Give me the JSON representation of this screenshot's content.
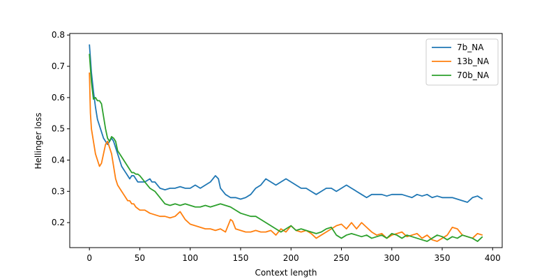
{
  "chart_data": {
    "type": "line",
    "title": "",
    "xlabel": "Context length",
    "ylabel": "Hellinger loss",
    "xlim": [
      -19.5,
      409.5
    ],
    "ylim": [
      0.12,
      0.805
    ],
    "xticks": [
      0,
      50,
      100,
      150,
      200,
      250,
      300,
      350,
      400
    ],
    "yticks": [
      0.2,
      0.3,
      0.4,
      0.5,
      0.6,
      0.7,
      0.8
    ],
    "xtick_labels": [
      "0",
      "50",
      "100",
      "150",
      "200",
      "250",
      "300",
      "350",
      "400"
    ],
    "ytick_labels": [
      "0.2",
      "0.3",
      "0.4",
      "0.5",
      "0.6",
      "0.7",
      "0.8"
    ],
    "grid": false,
    "legend_position": "top-right",
    "series": [
      {
        "name": "7b_NA",
        "color": "#1f77b4",
        "x": [
          0,
          2,
          4,
          6,
          8,
          10,
          12,
          14,
          16,
          18,
          20,
          22,
          24,
          26,
          28,
          30,
          32,
          34,
          36,
          38,
          40,
          42,
          44,
          46,
          48,
          50,
          55,
          60,
          62,
          65,
          70,
          75,
          80,
          85,
          90,
          95,
          100,
          105,
          110,
          115,
          120,
          125,
          128,
          130,
          135,
          140,
          145,
          150,
          155,
          160,
          165,
          170,
          175,
          180,
          185,
          190,
          195,
          200,
          205,
          210,
          215,
          220,
          225,
          230,
          235,
          240,
          245,
          250,
          255,
          260,
          265,
          270,
          275,
          280,
          285,
          290,
          295,
          300,
          305,
          310,
          315,
          320,
          325,
          330,
          335,
          340,
          345,
          350,
          355,
          360,
          365,
          370,
          375,
          380,
          385,
          390
        ],
        "y": [
          0.77,
          0.68,
          0.62,
          0.57,
          0.53,
          0.51,
          0.49,
          0.47,
          0.46,
          0.45,
          0.46,
          0.47,
          0.46,
          0.44,
          0.42,
          0.4,
          0.38,
          0.37,
          0.36,
          0.35,
          0.34,
          0.35,
          0.35,
          0.34,
          0.33,
          0.33,
          0.33,
          0.34,
          0.33,
          0.33,
          0.31,
          0.305,
          0.31,
          0.31,
          0.315,
          0.31,
          0.31,
          0.32,
          0.31,
          0.32,
          0.33,
          0.35,
          0.34,
          0.31,
          0.29,
          0.28,
          0.28,
          0.275,
          0.28,
          0.29,
          0.31,
          0.32,
          0.34,
          0.33,
          0.32,
          0.33,
          0.34,
          0.33,
          0.32,
          0.31,
          0.31,
          0.3,
          0.29,
          0.3,
          0.31,
          0.31,
          0.3,
          0.31,
          0.32,
          0.31,
          0.3,
          0.29,
          0.28,
          0.29,
          0.29,
          0.29,
          0.285,
          0.29,
          0.29,
          0.29,
          0.285,
          0.28,
          0.29,
          0.285,
          0.29,
          0.28,
          0.285,
          0.28,
          0.28,
          0.28,
          0.275,
          0.27,
          0.265,
          0.28,
          0.285,
          0.275
        ]
      },
      {
        "name": "13b_NA",
        "color": "#ff7f0e",
        "x": [
          0,
          1,
          2,
          4,
          6,
          8,
          10,
          12,
          14,
          16,
          18,
          20,
          22,
          24,
          26,
          28,
          30,
          32,
          34,
          36,
          38,
          40,
          42,
          44,
          46,
          48,
          50,
          55,
          60,
          65,
          70,
          75,
          80,
          85,
          90,
          95,
          100,
          105,
          110,
          115,
          120,
          125,
          130,
          135,
          140,
          142,
          145,
          150,
          155,
          160,
          165,
          170,
          175,
          180,
          185,
          190,
          195,
          200,
          205,
          210,
          215,
          220,
          225,
          230,
          235,
          240,
          245,
          250,
          255,
          260,
          265,
          270,
          275,
          280,
          285,
          290,
          295,
          300,
          305,
          310,
          315,
          320,
          325,
          330,
          335,
          340,
          345,
          350,
          355,
          360,
          365,
          370,
          375,
          380,
          385,
          390
        ],
        "y": [
          0.68,
          0.55,
          0.5,
          0.46,
          0.42,
          0.4,
          0.38,
          0.39,
          0.42,
          0.45,
          0.46,
          0.44,
          0.42,
          0.38,
          0.34,
          0.32,
          0.31,
          0.3,
          0.29,
          0.28,
          0.27,
          0.27,
          0.26,
          0.26,
          0.25,
          0.245,
          0.24,
          0.24,
          0.23,
          0.225,
          0.22,
          0.22,
          0.215,
          0.22,
          0.235,
          0.21,
          0.195,
          0.19,
          0.185,
          0.18,
          0.18,
          0.175,
          0.18,
          0.17,
          0.21,
          0.205,
          0.18,
          0.175,
          0.17,
          0.17,
          0.175,
          0.17,
          0.17,
          0.175,
          0.16,
          0.18,
          0.17,
          0.19,
          0.175,
          0.17,
          0.175,
          0.165,
          0.15,
          0.16,
          0.17,
          0.18,
          0.19,
          0.195,
          0.18,
          0.2,
          0.18,
          0.2,
          0.185,
          0.17,
          0.16,
          0.165,
          0.15,
          0.16,
          0.165,
          0.17,
          0.155,
          0.16,
          0.165,
          0.15,
          0.16,
          0.145,
          0.14,
          0.15,
          0.16,
          0.185,
          0.18,
          0.16,
          0.155,
          0.15,
          0.165,
          0.16
        ]
      },
      {
        "name": "70b_NA",
        "color": "#2ca02c",
        "x": [
          0,
          2,
          4,
          6,
          8,
          10,
          12,
          14,
          16,
          18,
          20,
          22,
          24,
          26,
          28,
          30,
          32,
          34,
          36,
          38,
          40,
          42,
          44,
          46,
          48,
          50,
          55,
          60,
          65,
          70,
          75,
          80,
          85,
          90,
          95,
          100,
          105,
          110,
          115,
          120,
          125,
          130,
          135,
          140,
          145,
          150,
          155,
          160,
          165,
          170,
          175,
          180,
          185,
          190,
          195,
          200,
          205,
          210,
          215,
          220,
          225,
          230,
          235,
          240,
          245,
          250,
          255,
          260,
          265,
          270,
          275,
          280,
          285,
          290,
          295,
          300,
          305,
          310,
          315,
          320,
          325,
          330,
          335,
          340,
          345,
          350,
          355,
          360,
          365,
          370,
          375,
          380,
          385,
          390
        ],
        "y": [
          0.74,
          0.65,
          0.595,
          0.6,
          0.59,
          0.59,
          0.58,
          0.54,
          0.5,
          0.47,
          0.46,
          0.475,
          0.47,
          0.46,
          0.43,
          0.42,
          0.41,
          0.4,
          0.39,
          0.38,
          0.37,
          0.36,
          0.36,
          0.355,
          0.355,
          0.35,
          0.33,
          0.31,
          0.3,
          0.28,
          0.26,
          0.255,
          0.26,
          0.255,
          0.26,
          0.255,
          0.25,
          0.25,
          0.255,
          0.25,
          0.255,
          0.26,
          0.255,
          0.25,
          0.24,
          0.23,
          0.225,
          0.22,
          0.22,
          0.21,
          0.2,
          0.19,
          0.18,
          0.17,
          0.18,
          0.19,
          0.175,
          0.18,
          0.175,
          0.17,
          0.165,
          0.17,
          0.18,
          0.185,
          0.16,
          0.15,
          0.16,
          0.165,
          0.16,
          0.155,
          0.16,
          0.15,
          0.155,
          0.16,
          0.15,
          0.165,
          0.16,
          0.15,
          0.16,
          0.155,
          0.15,
          0.145,
          0.14,
          0.15,
          0.16,
          0.155,
          0.145,
          0.155,
          0.15,
          0.16,
          0.155,
          0.15,
          0.14,
          0.155
        ]
      }
    ]
  }
}
